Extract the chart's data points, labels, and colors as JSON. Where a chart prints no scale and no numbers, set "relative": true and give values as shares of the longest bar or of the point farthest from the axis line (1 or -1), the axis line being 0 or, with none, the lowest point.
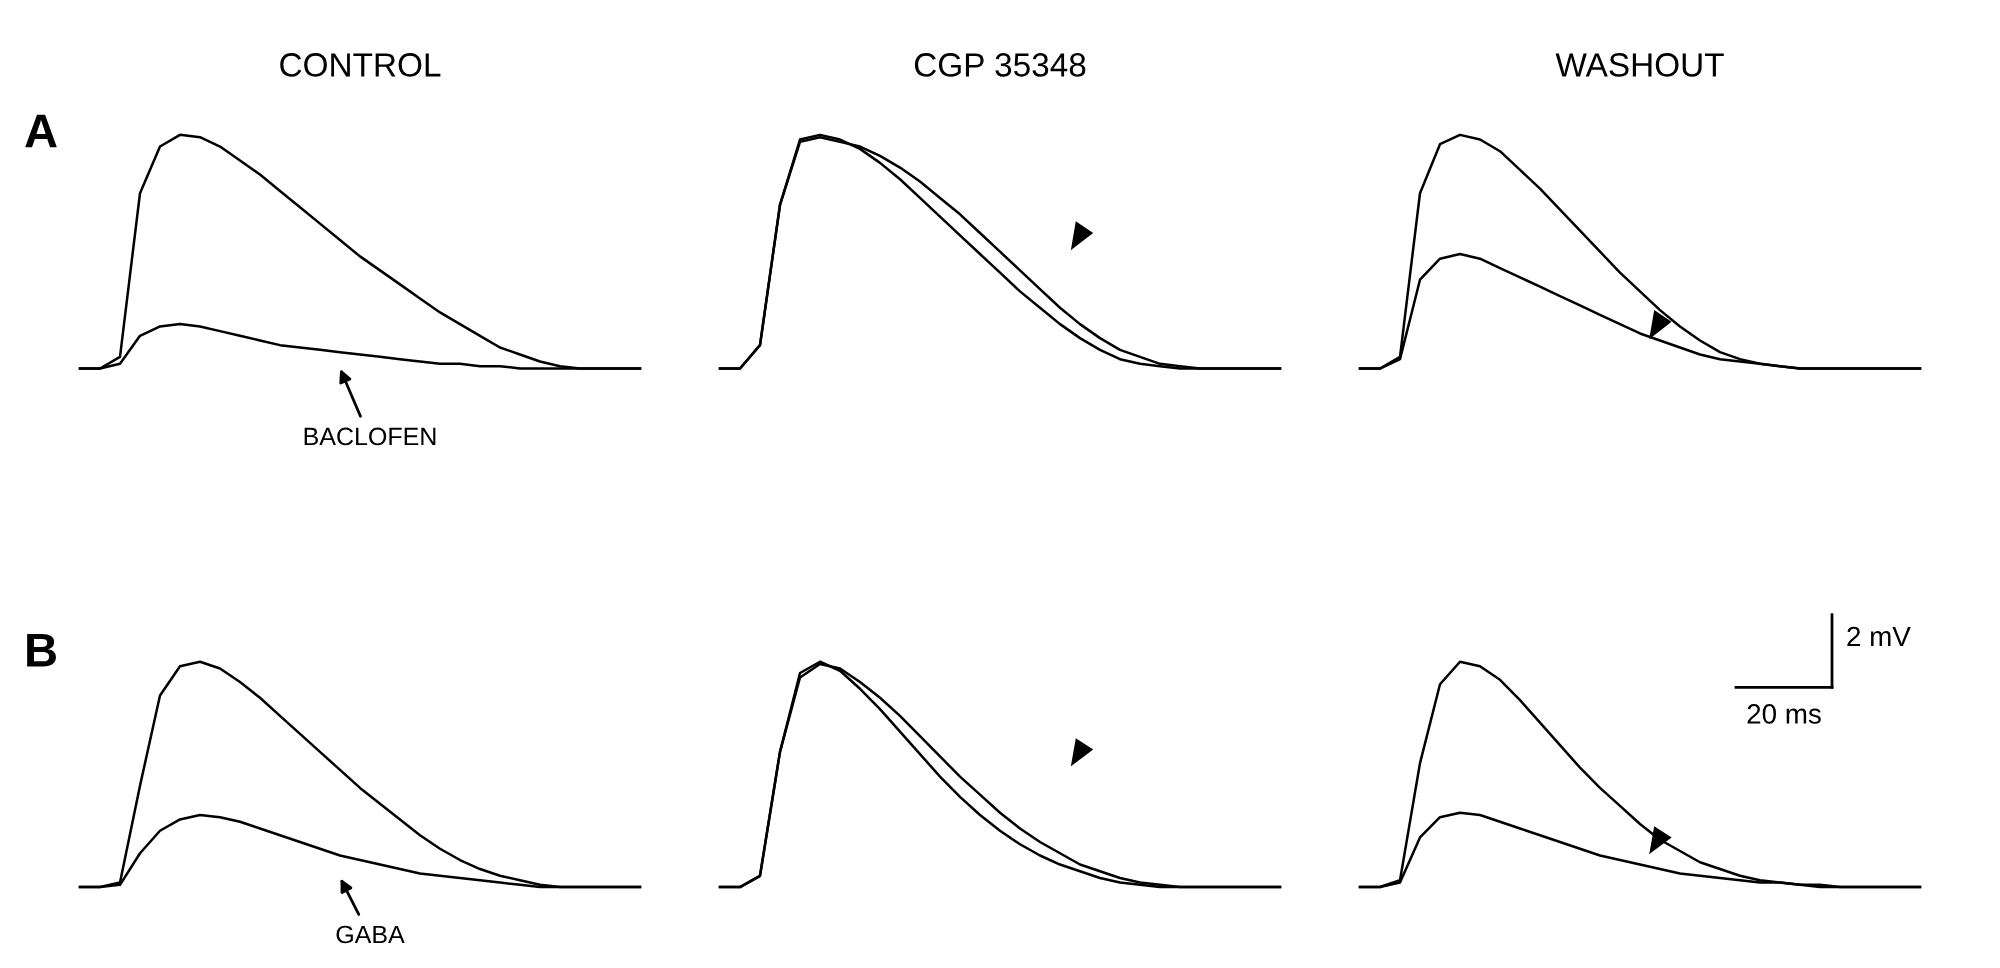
{
  "chart_data": [
    {
      "type": "line",
      "title": "CONTROL",
      "relative": true,
      "annotations": [
        "A",
        "BACLOFEN"
      ],
      "categories": [
        null,
        null,
        null,
        null,
        null,
        null,
        null,
        null,
        null,
        null,
        null,
        null,
        null,
        null,
        null,
        null,
        null,
        null,
        null,
        null,
        null,
        null,
        null,
        null,
        null,
        null,
        null,
        null,
        null
      ],
      "series": [
        {
          "color": "#000000",
          "values": [
            0,
            0,
            0.05,
            0.75,
            0.95,
            1.0,
            0.99,
            0.95,
            0.89,
            0.83,
            0.76,
            0.69,
            0.62,
            0.55,
            0.48,
            0.42,
            0.36,
            0.3,
            0.24,
            0.19,
            0.14,
            0.09,
            0.06,
            0.03,
            0.01,
            0,
            0,
            0,
            0
          ]
        },
        {
          "color": "#000000",
          "values": [
            0,
            0,
            0.02,
            0.14,
            0.18,
            0.19,
            0.18,
            0.16,
            0.14,
            0.12,
            0.1,
            0.09,
            0.08,
            0.07,
            0.06,
            0.05,
            0.04,
            0.03,
            0.02,
            0.02,
            0.01,
            0.01,
            0,
            0,
            0,
            0,
            0,
            0,
            0
          ]
        }
      ]
    },
    {
      "type": "line",
      "title": "CGP 35348",
      "relative": true,
      "categories": [
        null,
        null,
        null,
        null,
        null,
        null,
        null,
        null,
        null,
        null,
        null,
        null,
        null,
        null,
        null,
        null,
        null,
        null,
        null,
        null,
        null,
        null,
        null,
        null,
        null,
        null,
        null,
        null,
        null
      ],
      "series": [
        {
          "color": "#000000",
          "values": [
            0,
            0,
            0.1,
            0.7,
            0.98,
            1.0,
            0.98,
            0.94,
            0.88,
            0.81,
            0.73,
            0.65,
            0.57,
            0.49,
            0.41,
            0.33,
            0.26,
            0.19,
            0.13,
            0.08,
            0.04,
            0.02,
            0.01,
            0,
            0,
            0,
            0,
            0,
            0
          ]
        },
        {
          "color": "#000000",
          "values": [
            0,
            0,
            0.1,
            0.7,
            0.97,
            0.99,
            0.97,
            0.95,
            0.91,
            0.86,
            0.8,
            0.73,
            0.66,
            0.58,
            0.5,
            0.42,
            0.34,
            0.26,
            0.19,
            0.13,
            0.08,
            0.05,
            0.02,
            0.01,
            0,
            0,
            0,
            0,
            0
          ]
        }
      ]
    },
    {
      "type": "line",
      "title": "WASHOUT",
      "relative": true,
      "annotations": [
        "2 mV",
        "20 ms"
      ],
      "categories": [
        null,
        null,
        null,
        null,
        null,
        null,
        null,
        null,
        null,
        null,
        null,
        null,
        null,
        null,
        null,
        null,
        null,
        null,
        null,
        null,
        null,
        null,
        null,
        null,
        null,
        null,
        null,
        null,
        null
      ],
      "series": [
        {
          "color": "#000000",
          "values": [
            0,
            0,
            0.05,
            0.75,
            0.96,
            1.0,
            0.98,
            0.93,
            0.85,
            0.77,
            0.68,
            0.59,
            0.5,
            0.41,
            0.33,
            0.25,
            0.18,
            0.12,
            0.07,
            0.04,
            0.02,
            0.01,
            0,
            0,
            0,
            0,
            0,
            0,
            0
          ]
        },
        {
          "color": "#000000",
          "values": [
            0,
            0,
            0.04,
            0.38,
            0.47,
            0.49,
            0.47,
            0.43,
            0.39,
            0.35,
            0.31,
            0.27,
            0.23,
            0.19,
            0.15,
            0.12,
            0.09,
            0.06,
            0.04,
            0.03,
            0.02,
            0.01,
            0,
            0,
            0,
            0,
            0,
            0,
            0
          ]
        }
      ]
    },
    {
      "type": "line",
      "relative": true,
      "annotations": [
        "B",
        "GABA"
      ],
      "categories": [
        null,
        null,
        null,
        null,
        null,
        null,
        null,
        null,
        null,
        null,
        null,
        null,
        null,
        null,
        null,
        null,
        null,
        null,
        null,
        null,
        null,
        null,
        null,
        null,
        null,
        null,
        null,
        null,
        null
      ],
      "series": [
        {
          "color": "#000000",
          "values": [
            0,
            0,
            0.02,
            0.45,
            0.85,
            0.98,
            1.0,
            0.97,
            0.91,
            0.84,
            0.76,
            0.68,
            0.6,
            0.52,
            0.44,
            0.37,
            0.3,
            0.23,
            0.17,
            0.12,
            0.08,
            0.05,
            0.03,
            0.01,
            0,
            0,
            0,
            0,
            0
          ]
        },
        {
          "color": "#000000",
          "values": [
            0,
            0,
            0.01,
            0.15,
            0.25,
            0.3,
            0.32,
            0.31,
            0.29,
            0.26,
            0.23,
            0.2,
            0.17,
            0.14,
            0.12,
            0.1,
            0.08,
            0.06,
            0.05,
            0.04,
            0.03,
            0.02,
            0.01,
            0,
            0,
            0,
            0,
            0,
            0
          ]
        }
      ]
    },
    {
      "type": "line",
      "relative": true,
      "categories": [
        null,
        null,
        null,
        null,
        null,
        null,
        null,
        null,
        null,
        null,
        null,
        null,
        null,
        null,
        null,
        null,
        null,
        null,
        null,
        null,
        null,
        null,
        null,
        null,
        null,
        null,
        null,
        null,
        null
      ],
      "series": [
        {
          "color": "#000000",
          "values": [
            0,
            0,
            0.05,
            0.6,
            0.95,
            1.0,
            0.96,
            0.88,
            0.79,
            0.69,
            0.59,
            0.49,
            0.4,
            0.32,
            0.25,
            0.19,
            0.14,
            0.1,
            0.07,
            0.04,
            0.02,
            0.01,
            0,
            0,
            0,
            0,
            0,
            0,
            0
          ]
        },
        {
          "color": "#000000",
          "values": [
            0,
            0,
            0.05,
            0.6,
            0.93,
            0.99,
            0.97,
            0.91,
            0.84,
            0.76,
            0.67,
            0.58,
            0.49,
            0.41,
            0.33,
            0.26,
            0.2,
            0.15,
            0.1,
            0.07,
            0.04,
            0.02,
            0.01,
            0,
            0,
            0,
            0,
            0,
            0
          ]
        }
      ]
    },
    {
      "type": "line",
      "relative": true,
      "categories": [
        null,
        null,
        null,
        null,
        null,
        null,
        null,
        null,
        null,
        null,
        null,
        null,
        null,
        null,
        null,
        null,
        null,
        null,
        null,
        null,
        null,
        null,
        null,
        null,
        null,
        null,
        null,
        null,
        null
      ],
      "series": [
        {
          "color": "#000000",
          "values": [
            0,
            0,
            0.03,
            0.55,
            0.9,
            1.0,
            0.98,
            0.92,
            0.83,
            0.73,
            0.63,
            0.53,
            0.44,
            0.36,
            0.28,
            0.21,
            0.16,
            0.11,
            0.08,
            0.05,
            0.03,
            0.02,
            0.01,
            0,
            0,
            0,
            0,
            0,
            0
          ]
        },
        {
          "color": "#000000",
          "values": [
            0,
            0,
            0.02,
            0.22,
            0.31,
            0.33,
            0.32,
            0.29,
            0.26,
            0.23,
            0.2,
            0.17,
            0.14,
            0.12,
            0.1,
            0.08,
            0.06,
            0.05,
            0.04,
            0.03,
            0.02,
            0.02,
            0.01,
            0.01,
            0,
            0,
            0,
            0,
            0
          ]
        }
      ]
    }
  ]
}
